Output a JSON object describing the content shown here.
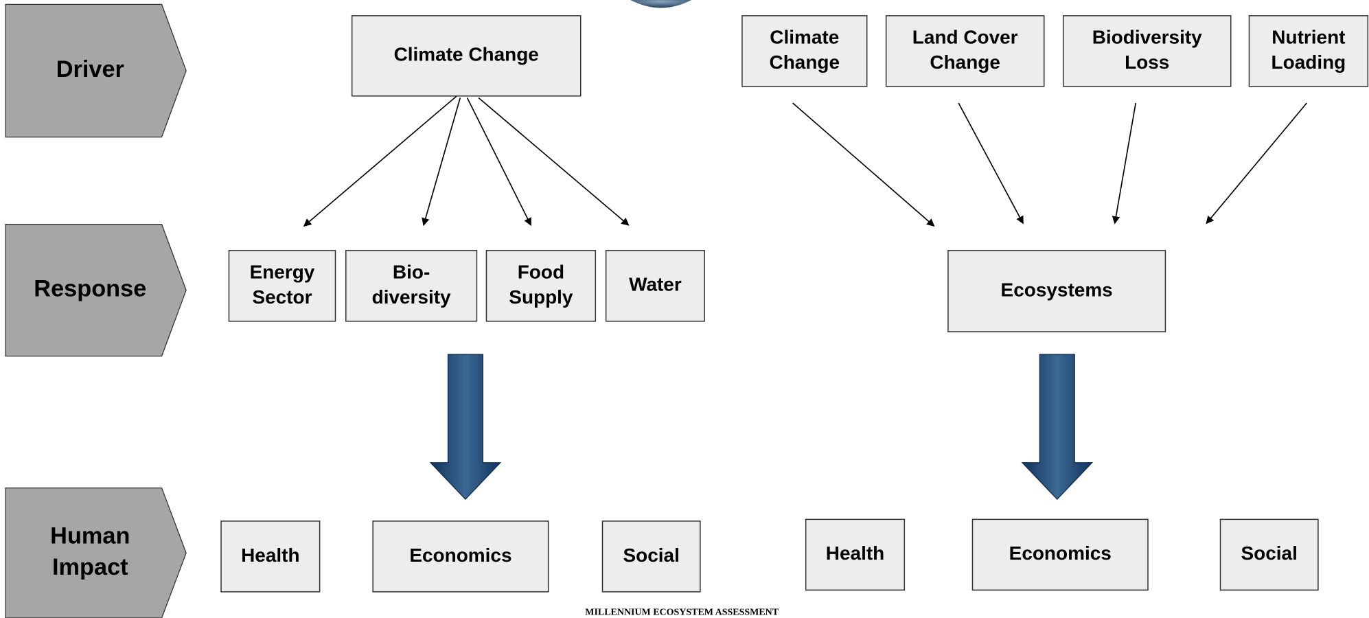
{
  "rows": [
    {
      "label": [
        "Driver"
      ]
    },
    {
      "label": [
        "Response"
      ]
    },
    {
      "label": [
        "Human",
        "Impact"
      ]
    }
  ],
  "left": {
    "driver": {
      "label": [
        "Climate Change"
      ]
    },
    "responses": [
      {
        "label": [
          "Energy",
          "Sector"
        ]
      },
      {
        "label": [
          "Bio-",
          "diversity"
        ]
      },
      {
        "label": [
          "Food",
          "Supply"
        ]
      },
      {
        "label": [
          "Water"
        ]
      }
    ],
    "impacts": [
      {
        "label": [
          "Health"
        ]
      },
      {
        "label": [
          "Economics"
        ]
      },
      {
        "label": [
          "Social"
        ]
      }
    ]
  },
  "right": {
    "drivers": [
      {
        "label": [
          "Climate",
          "Change"
        ]
      },
      {
        "label": [
          "Land Cover",
          "Change"
        ]
      },
      {
        "label": [
          "Biodiversity",
          "Loss"
        ]
      },
      {
        "label": [
          "Nutrient",
          "Loading"
        ]
      }
    ],
    "response": {
      "label": [
        "Ecosystems"
      ]
    },
    "impacts": [
      {
        "label": [
          "Health"
        ]
      },
      {
        "label": [
          "Economics"
        ]
      },
      {
        "label": [
          "Social"
        ]
      }
    ]
  },
  "footer": "MILLENNIUM ECOSYSTEM ASSESSMENT"
}
